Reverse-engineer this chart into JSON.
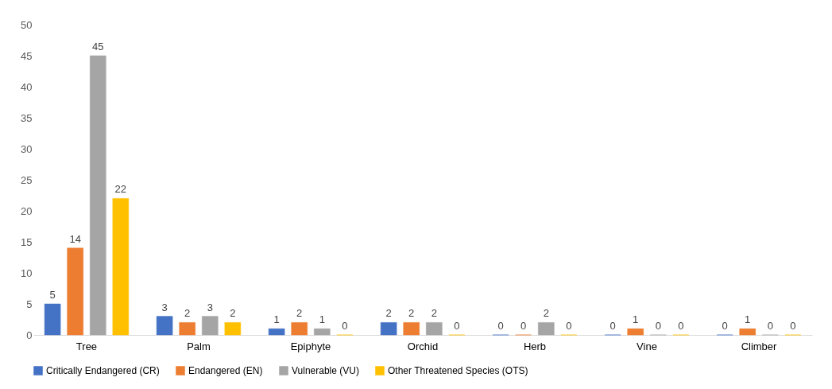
{
  "chart_data": {
    "type": "bar",
    "categories": [
      "Tree",
      "Palm",
      "Epiphyte",
      "Orchid",
      "Herb",
      "Vine",
      "Climber"
    ],
    "series": [
      {
        "name": "Critically Endangered (CR)",
        "color": "#4472c4",
        "values": [
          5,
          3,
          1,
          2,
          0,
          0,
          0
        ]
      },
      {
        "name": "Endangered (EN)",
        "color": "#ed7d31",
        "values": [
          14,
          2,
          2,
          2,
          0,
          1,
          1
        ]
      },
      {
        "name": "Vulnerable (VU)",
        "color": "#a5a5a5",
        "values": [
          45,
          3,
          1,
          2,
          2,
          0,
          0
        ]
      },
      {
        "name": "Other Threatened Species (OTS)",
        "color": "#ffc000",
        "values": [
          22,
          2,
          0,
          0,
          0,
          0,
          0
        ]
      }
    ],
    "ylim": [
      0,
      50
    ],
    "yticks": [
      0,
      5,
      10,
      15,
      20,
      25,
      30,
      35,
      40,
      45,
      50
    ],
    "grid": false,
    "legend": "bottom",
    "data_labels": true
  }
}
